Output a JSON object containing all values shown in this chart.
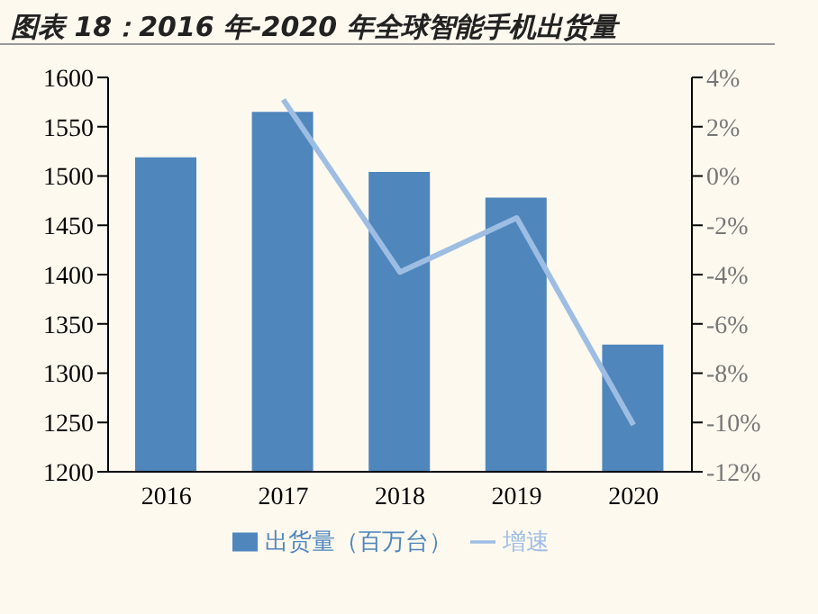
{
  "chart_data": {
    "type": "bar",
    "title": "图表 18：2016 年-2020 年全球智能手机出货量",
    "categories": [
      "2016",
      "2017",
      "2018",
      "2019",
      "2020"
    ],
    "series": [
      {
        "name": "出货量（百万台）",
        "color": "#4f86bc",
        "values": [
          1519,
          1565,
          1504,
          1478,
          1329
        ]
      },
      {
        "name": "增速",
        "type": "line",
        "axis": "y2",
        "color": "#9dbde3",
        "values": [
          null,
          3.1,
          -3.9,
          -1.7,
          -10.1
        ]
      }
    ],
    "ylim": [
      1200,
      1600
    ],
    "yticks": [
      1200,
      1250,
      1300,
      1350,
      1400,
      1450,
      1500,
      1550,
      1600
    ],
    "y2lim": [
      -12,
      4
    ],
    "y2ticks": [
      {
        "value": -12,
        "label": "-12%"
      },
      {
        "value": -10,
        "label": "-10%"
      },
      {
        "value": -8,
        "label": "-8%"
      },
      {
        "value": -6,
        "label": "-6%"
      },
      {
        "value": -4,
        "label": "-4%"
      },
      {
        "value": -2,
        "label": "-2%"
      },
      {
        "value": 0,
        "label": "0%"
      },
      {
        "value": 2,
        "label": "2%"
      },
      {
        "value": 4,
        "label": "4%"
      }
    ],
    "grid": false,
    "legend": "bottom",
    "marker": "none"
  }
}
